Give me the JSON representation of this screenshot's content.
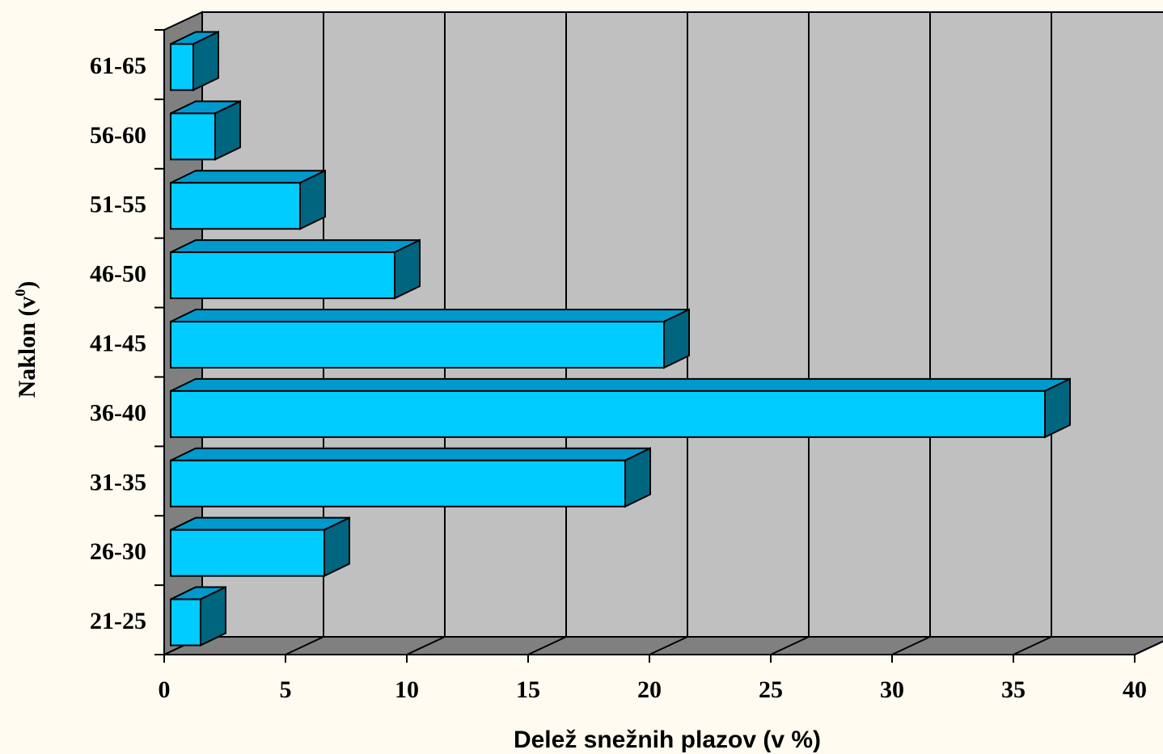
{
  "chart_data": {
    "type": "bar",
    "orientation": "horizontal",
    "three_d": true,
    "categories": [
      "21-25",
      "26-30",
      "31-35",
      "36-40",
      "41-45",
      "46-50",
      "51-55",
      "56-60",
      "61-65"
    ],
    "values": [
      1.5,
      6.6,
      19.0,
      36.3,
      20.6,
      9.5,
      5.6,
      2.1,
      1.2
    ],
    "xlabel": "Delež snežnih plazov (v %)",
    "ylabel_main": "Naklon (v",
    "ylabel_sup": "0",
    "ylabel_end": ")",
    "xlim": [
      0,
      40
    ],
    "xticks": [
      "0",
      "5",
      "10",
      "15",
      "20",
      "25",
      "30",
      "35",
      "40"
    ],
    "grid": true,
    "legend": "none",
    "colors": {
      "bar_front": "#00ccff",
      "bar_top": "#0099cc",
      "bar_side": "#006680",
      "wall": "#c0c0c0",
      "left_wall": "#808080",
      "floor": "#808080",
      "background": "#fffbf0"
    }
  }
}
